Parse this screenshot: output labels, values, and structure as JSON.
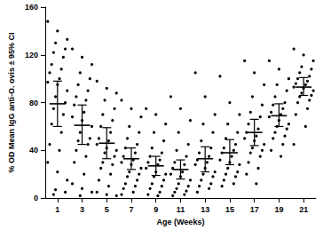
{
  "chart_data": {
    "type": "scatter",
    "x_label": "Age (Weeks)",
    "y_label": "% OD Mean IgG anti-O. ovis ± 95% CI",
    "categories": [
      "1",
      "3",
      "5",
      "7",
      "9",
      "11",
      "13",
      "15",
      "17",
      "19",
      "21"
    ],
    "points": [
      [
        148,
        140,
        133,
        130,
        125,
        122,
        118,
        112,
        108,
        105,
        100,
        97,
        95,
        90,
        85,
        80,
        75,
        70,
        62,
        55,
        45,
        40,
        30,
        22,
        15,
        7,
        5,
        3
      ],
      [
        125,
        118,
        112,
        105,
        100,
        95,
        90,
        85,
        82,
        78,
        72,
        68,
        65,
        60,
        55,
        50,
        48,
        45,
        40,
        35,
        30,
        20,
        12,
        8,
        5,
        2
      ],
      [
        98,
        92,
        88,
        82,
        75,
        70,
        65,
        60,
        55,
        50,
        48,
        45,
        42,
        40,
        38,
        35,
        30,
        28,
        25,
        20,
        15,
        10,
        5,
        3,
        2
      ],
      [
        82,
        75,
        68,
        60,
        55,
        50,
        45,
        42,
        38,
        35,
        32,
        30,
        28,
        25,
        22,
        20,
        18,
        15,
        12,
        10,
        8,
        5,
        3
      ],
      [
        75,
        70,
        62,
        55,
        48,
        42,
        38,
        35,
        32,
        30,
        28,
        25,
        22,
        20,
        18,
        15,
        12,
        10,
        8,
        5,
        3,
        2
      ],
      [
        85,
        75,
        65,
        55,
        45,
        40,
        35,
        30,
        28,
        25,
        22,
        20,
        18,
        15,
        12,
        10,
        8,
        6,
        5,
        3,
        2
      ],
      [
        105,
        85,
        70,
        62,
        55,
        48,
        42,
        38,
        35,
        32,
        30,
        28,
        25,
        22,
        20,
        18,
        15,
        12,
        10,
        8,
        5
      ],
      [
        102,
        80,
        70,
        62,
        55,
        50,
        45,
        42,
        40,
        38,
        35,
        32,
        30,
        28,
        25,
        22,
        20,
        18,
        15,
        12,
        10
      ],
      [
        115,
        105,
        95,
        85,
        78,
        72,
        68,
        62,
        58,
        55,
        52,
        50,
        48,
        45,
        42,
        40,
        38,
        35,
        30,
        25,
        20,
        12
      ],
      [
        115,
        108,
        100,
        95,
        90,
        85,
        80,
        78,
        75,
        72,
        70,
        68,
        65,
        62,
        60,
        58,
        55,
        52,
        50,
        45,
        40,
        35
      ],
      [
        125,
        120,
        115,
        110,
        108,
        105,
        102,
        100,
        98,
        96,
        95,
        93,
        92,
        90,
        88,
        86,
        85,
        82,
        80,
        75,
        70,
        60,
        45
      ]
    ],
    "means": [
      79,
      61,
      46,
      33,
      27,
      24,
      33,
      38,
      55,
      69,
      93
    ],
    "ci_low": [
      60,
      45,
      33,
      24,
      19,
      16,
      22,
      28,
      44,
      60,
      86
    ],
    "ci_high": [
      98,
      78,
      59,
      42,
      35,
      32,
      43,
      49,
      66,
      79,
      101
    ],
    "color": "#000000",
    "marker": "circle",
    "ylim": [
      0,
      160
    ],
    "yticks": [
      0,
      40,
      80,
      120,
      160
    ],
    "grid": false
  }
}
